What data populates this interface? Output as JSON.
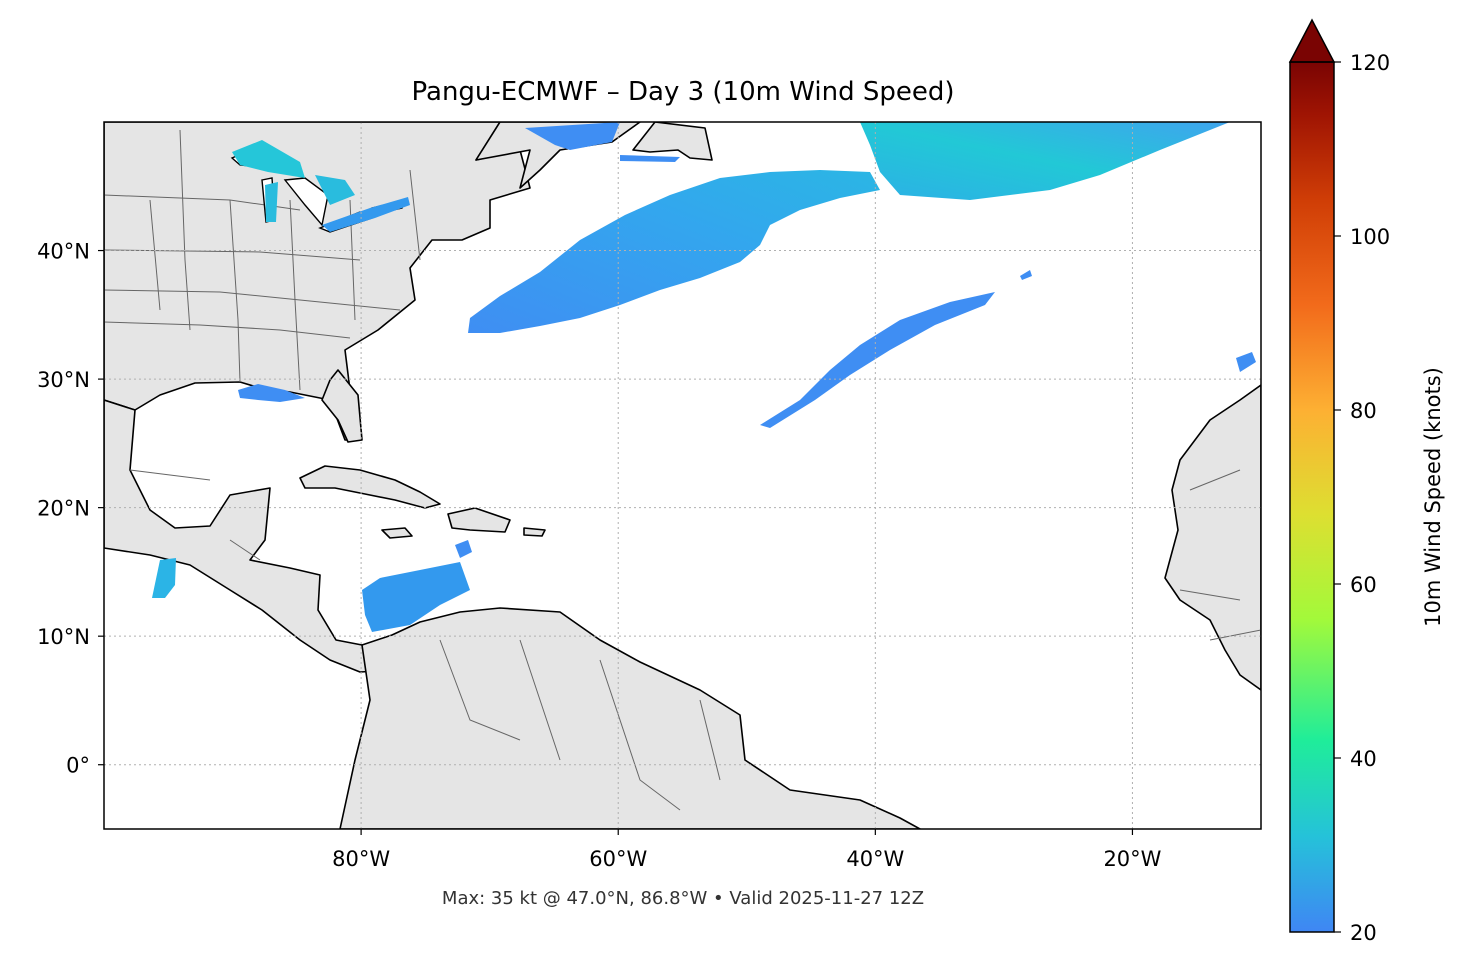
{
  "title": "Pangu-ECMWF – Day 3 (10m Wind Speed)",
  "footer": "Max: 35 kt @ 47.0°N, 86.8°W • Valid 2025-11-27 12Z",
  "map": {
    "lon_range": [
      -100,
      -10
    ],
    "lat_range": [
      -5,
      50
    ],
    "lon_ticks": [
      {
        "value": -80,
        "label": "80°W"
      },
      {
        "value": -60,
        "label": "60°W"
      },
      {
        "value": -40,
        "label": "40°W"
      },
      {
        "value": -20,
        "label": "20°W"
      }
    ],
    "lat_ticks": [
      {
        "value": 40,
        "label": "40°N"
      },
      {
        "value": 30,
        "label": "30°N"
      },
      {
        "value": 20,
        "label": "20°N"
      },
      {
        "value": 10,
        "label": "10°N"
      },
      {
        "value": 0,
        "label": "0°"
      }
    ],
    "gridlines": "dotted",
    "land_color": "#e5e5e5",
    "coastline_color": "#000000",
    "border_color": "#666666"
  },
  "colorbar": {
    "label": "10m Wind Speed (knots)",
    "range": [
      20,
      120
    ],
    "ticks": [
      {
        "value": 20,
        "label": "20"
      },
      {
        "value": 40,
        "label": "40"
      },
      {
        "value": 60,
        "label": "60"
      },
      {
        "value": 80,
        "label": "80"
      },
      {
        "value": 100,
        "label": "100"
      },
      {
        "value": 120,
        "label": "120"
      }
    ],
    "extend": "max",
    "colormap": [
      "#3f86f4",
      "#25c2d9",
      "#1fed9a",
      "#a3f93a",
      "#dddf31",
      "#fdb033",
      "#f26b1b",
      "#d03e06",
      "#9f1403",
      "#7a0403"
    ]
  },
  "wind_areas": [
    {
      "name": "north-atlantic-jet-band",
      "approx_speed_kt": 26
    },
    {
      "name": "north-east-atlantic-band",
      "approx_speed_kt": 30
    },
    {
      "name": "mid-atlantic-band",
      "approx_speed_kt": 24
    },
    {
      "name": "caribbean-jet",
      "approx_speed_kt": 26
    },
    {
      "name": "great-lakes",
      "approx_speed_kt": 35
    },
    {
      "name": "gulf-of-tehuantepec",
      "approx_speed_kt": 28
    }
  ]
}
